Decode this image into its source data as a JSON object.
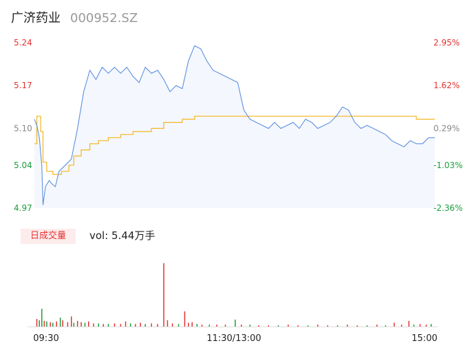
{
  "header": {
    "name": "广济药业",
    "code": "000952.SZ"
  },
  "legend": {
    "label": "日成交量",
    "vol_text": "vol: 5.44万手"
  },
  "colors": {
    "price_line": "#5b8fe0",
    "price_fill": "#f4f7fd",
    "avg_line": "#f5b521",
    "up": "#e33232",
    "down": "#1a9e3a",
    "neutral": "#888888"
  },
  "chart_data": {
    "type": "line",
    "ylim": [
      4.97,
      5.24
    ],
    "y_ticks_left": [
      {
        "value": 5.24,
        "label": "5.24",
        "tone": "up"
      },
      {
        "value": 5.17,
        "label": "5.17",
        "tone": "up"
      },
      {
        "value": 5.1,
        "label": "5.10",
        "tone": "neutral"
      },
      {
        "value": 5.04,
        "label": "5.04",
        "tone": "down"
      },
      {
        "value": 4.97,
        "label": "4.97",
        "tone": "down"
      }
    ],
    "y_ticks_right": [
      {
        "value": 5.24,
        "label": "2.95%",
        "tone": "up"
      },
      {
        "value": 5.17,
        "label": "1.62%",
        "tone": "up"
      },
      {
        "value": 5.1,
        "label": "0.29%",
        "tone": "neutral"
      },
      {
        "value": 5.04,
        "label": "-1.03%",
        "tone": "down"
      },
      {
        "value": 4.97,
        "label": "-2.36%",
        "tone": "down"
      }
    ],
    "x_ticks": [
      "09:30",
      "11:30/13:00",
      "15:00"
    ],
    "price_keyframes": [
      [
        0,
        5.115
      ],
      [
        2,
        5.105
      ],
      [
        4,
        5.085
      ],
      [
        6,
        5.04
      ],
      [
        7,
        4.975
      ],
      [
        9,
        5.005
      ],
      [
        12,
        5.015
      ],
      [
        14,
        5.01
      ],
      [
        17,
        5.005
      ],
      [
        20,
        5.03
      ],
      [
        25,
        5.04
      ],
      [
        30,
        5.05
      ],
      [
        35,
        5.1
      ],
      [
        40,
        5.16
      ],
      [
        45,
        5.195
      ],
      [
        50,
        5.18
      ],
      [
        55,
        5.2
      ],
      [
        60,
        5.19
      ],
      [
        65,
        5.2
      ],
      [
        70,
        5.19
      ],
      [
        75,
        5.2
      ],
      [
        80,
        5.185
      ],
      [
        85,
        5.175
      ],
      [
        90,
        5.2
      ],
      [
        95,
        5.19
      ],
      [
        100,
        5.195
      ],
      [
        105,
        5.18
      ],
      [
        110,
        5.16
      ],
      [
        115,
        5.17
      ],
      [
        120,
        5.165
      ],
      [
        125,
        5.21
      ],
      [
        130,
        5.235
      ],
      [
        135,
        5.23
      ],
      [
        140,
        5.21
      ],
      [
        145,
        5.195
      ],
      [
        150,
        5.19
      ],
      [
        155,
        5.185
      ],
      [
        160,
        5.18
      ],
      [
        165,
        5.175
      ],
      [
        170,
        5.13
      ],
      [
        175,
        5.115
      ],
      [
        180,
        5.11
      ],
      [
        185,
        5.105
      ],
      [
        190,
        5.1
      ],
      [
        195,
        5.11
      ],
      [
        200,
        5.1
      ],
      [
        205,
        5.105
      ],
      [
        210,
        5.11
      ],
      [
        215,
        5.1
      ],
      [
        220,
        5.115
      ],
      [
        225,
        5.11
      ],
      [
        230,
        5.1
      ],
      [
        235,
        5.105
      ],
      [
        240,
        5.11
      ],
      [
        245,
        5.12
      ],
      [
        250,
        5.135
      ],
      [
        255,
        5.13
      ],
      [
        260,
        5.11
      ],
      [
        265,
        5.1
      ],
      [
        270,
        5.105
      ],
      [
        275,
        5.1
      ],
      [
        280,
        5.095
      ],
      [
        285,
        5.09
      ],
      [
        290,
        5.08
      ],
      [
        295,
        5.075
      ],
      [
        300,
        5.07
      ],
      [
        305,
        5.08
      ],
      [
        310,
        5.075
      ],
      [
        315,
        5.075
      ],
      [
        320,
        5.085
      ],
      [
        325,
        5.085
      ]
    ],
    "avg_keyframes": [
      [
        0,
        5.075
      ],
      [
        2,
        5.12
      ],
      [
        5,
        5.095
      ],
      [
        7,
        5.045
      ],
      [
        10,
        5.03
      ],
      [
        15,
        5.025
      ],
      [
        22,
        5.03
      ],
      [
        28,
        5.04
      ],
      [
        32,
        5.055
      ],
      [
        38,
        5.065
      ],
      [
        45,
        5.075
      ],
      [
        52,
        5.08
      ],
      [
        60,
        5.085
      ],
      [
        70,
        5.09
      ],
      [
        80,
        5.095
      ],
      [
        95,
        5.1
      ],
      [
        105,
        5.11
      ],
      [
        120,
        5.115
      ],
      [
        130,
        5.12
      ],
      [
        240,
        5.12
      ],
      [
        300,
        5.12
      ],
      [
        310,
        5.115
      ],
      [
        325,
        5.115
      ]
    ],
    "volume_bars": [
      {
        "t": 2,
        "v": 0.12,
        "tone": "up"
      },
      {
        "t": 4,
        "v": 0.1,
        "tone": "down"
      },
      {
        "t": 6,
        "v": 0.28,
        "tone": "down"
      },
      {
        "t": 8,
        "v": 0.09,
        "tone": "up"
      },
      {
        "t": 10,
        "v": 0.08,
        "tone": "down"
      },
      {
        "t": 13,
        "v": 0.07,
        "tone": "up"
      },
      {
        "t": 15,
        "v": 0.06,
        "tone": "down"
      },
      {
        "t": 18,
        "v": 0.08,
        "tone": "up"
      },
      {
        "t": 21,
        "v": 0.14,
        "tone": "down"
      },
      {
        "t": 23,
        "v": 0.1,
        "tone": "up"
      },
      {
        "t": 27,
        "v": 0.07,
        "tone": "up"
      },
      {
        "t": 30,
        "v": 0.16,
        "tone": "up"
      },
      {
        "t": 32,
        "v": 0.06,
        "tone": "down"
      },
      {
        "t": 35,
        "v": 0.09,
        "tone": "up"
      },
      {
        "t": 38,
        "v": 0.07,
        "tone": "up"
      },
      {
        "t": 41,
        "v": 0.06,
        "tone": "down"
      },
      {
        "t": 44,
        "v": 0.08,
        "tone": "up"
      },
      {
        "t": 48,
        "v": 0.05,
        "tone": "up"
      },
      {
        "t": 52,
        "v": 0.05,
        "tone": "down"
      },
      {
        "t": 56,
        "v": 0.04,
        "tone": "up"
      },
      {
        "t": 60,
        "v": 0.04,
        "tone": "down"
      },
      {
        "t": 65,
        "v": 0.05,
        "tone": "up"
      },
      {
        "t": 70,
        "v": 0.04,
        "tone": "up"
      },
      {
        "t": 74,
        "v": 0.08,
        "tone": "up"
      },
      {
        "t": 78,
        "v": 0.05,
        "tone": "down"
      },
      {
        "t": 82,
        "v": 0.04,
        "tone": "up"
      },
      {
        "t": 86,
        "v": 0.06,
        "tone": "up"
      },
      {
        "t": 90,
        "v": 0.04,
        "tone": "down"
      },
      {
        "t": 95,
        "v": 0.05,
        "tone": "up"
      },
      {
        "t": 100,
        "v": 0.04,
        "tone": "up"
      },
      {
        "t": 105,
        "v": 1.0,
        "tone": "up"
      },
      {
        "t": 108,
        "v": 0.1,
        "tone": "up"
      },
      {
        "t": 112,
        "v": 0.05,
        "tone": "up"
      },
      {
        "t": 117,
        "v": 0.04,
        "tone": "down"
      },
      {
        "t": 122,
        "v": 0.24,
        "tone": "up"
      },
      {
        "t": 125,
        "v": 0.06,
        "tone": "up"
      },
      {
        "t": 128,
        "v": 0.07,
        "tone": "up"
      },
      {
        "t": 132,
        "v": 0.04,
        "tone": "down"
      },
      {
        "t": 136,
        "v": 0.03,
        "tone": "up"
      },
      {
        "t": 142,
        "v": 0.03,
        "tone": "down"
      },
      {
        "t": 148,
        "v": 0.03,
        "tone": "up"
      },
      {
        "t": 155,
        "v": 0.03,
        "tone": "up"
      },
      {
        "t": 163,
        "v": 0.11,
        "tone": "down"
      },
      {
        "t": 168,
        "v": 0.03,
        "tone": "up"
      },
      {
        "t": 175,
        "v": 0.03,
        "tone": "down"
      },
      {
        "t": 182,
        "v": 0.02,
        "tone": "up"
      },
      {
        "t": 190,
        "v": 0.02,
        "tone": "up"
      },
      {
        "t": 198,
        "v": 0.02,
        "tone": "down"
      },
      {
        "t": 206,
        "v": 0.03,
        "tone": "up"
      },
      {
        "t": 214,
        "v": 0.02,
        "tone": "up"
      },
      {
        "t": 222,
        "v": 0.02,
        "tone": "down"
      },
      {
        "t": 230,
        "v": 0.03,
        "tone": "up"
      },
      {
        "t": 238,
        "v": 0.02,
        "tone": "up"
      },
      {
        "t": 246,
        "v": 0.02,
        "tone": "down"
      },
      {
        "t": 254,
        "v": 0.03,
        "tone": "up"
      },
      {
        "t": 262,
        "v": 0.02,
        "tone": "up"
      },
      {
        "t": 270,
        "v": 0.02,
        "tone": "down"
      },
      {
        "t": 278,
        "v": 0.03,
        "tone": "up"
      },
      {
        "t": 285,
        "v": 0.02,
        "tone": "down"
      },
      {
        "t": 292,
        "v": 0.06,
        "tone": "up"
      },
      {
        "t": 298,
        "v": 0.03,
        "tone": "up"
      },
      {
        "t": 304,
        "v": 0.09,
        "tone": "up"
      },
      {
        "t": 308,
        "v": 0.03,
        "tone": "down"
      },
      {
        "t": 313,
        "v": 0.04,
        "tone": "up"
      },
      {
        "t": 318,
        "v": 0.03,
        "tone": "up"
      },
      {
        "t": 322,
        "v": 0.04,
        "tone": "down"
      }
    ]
  }
}
